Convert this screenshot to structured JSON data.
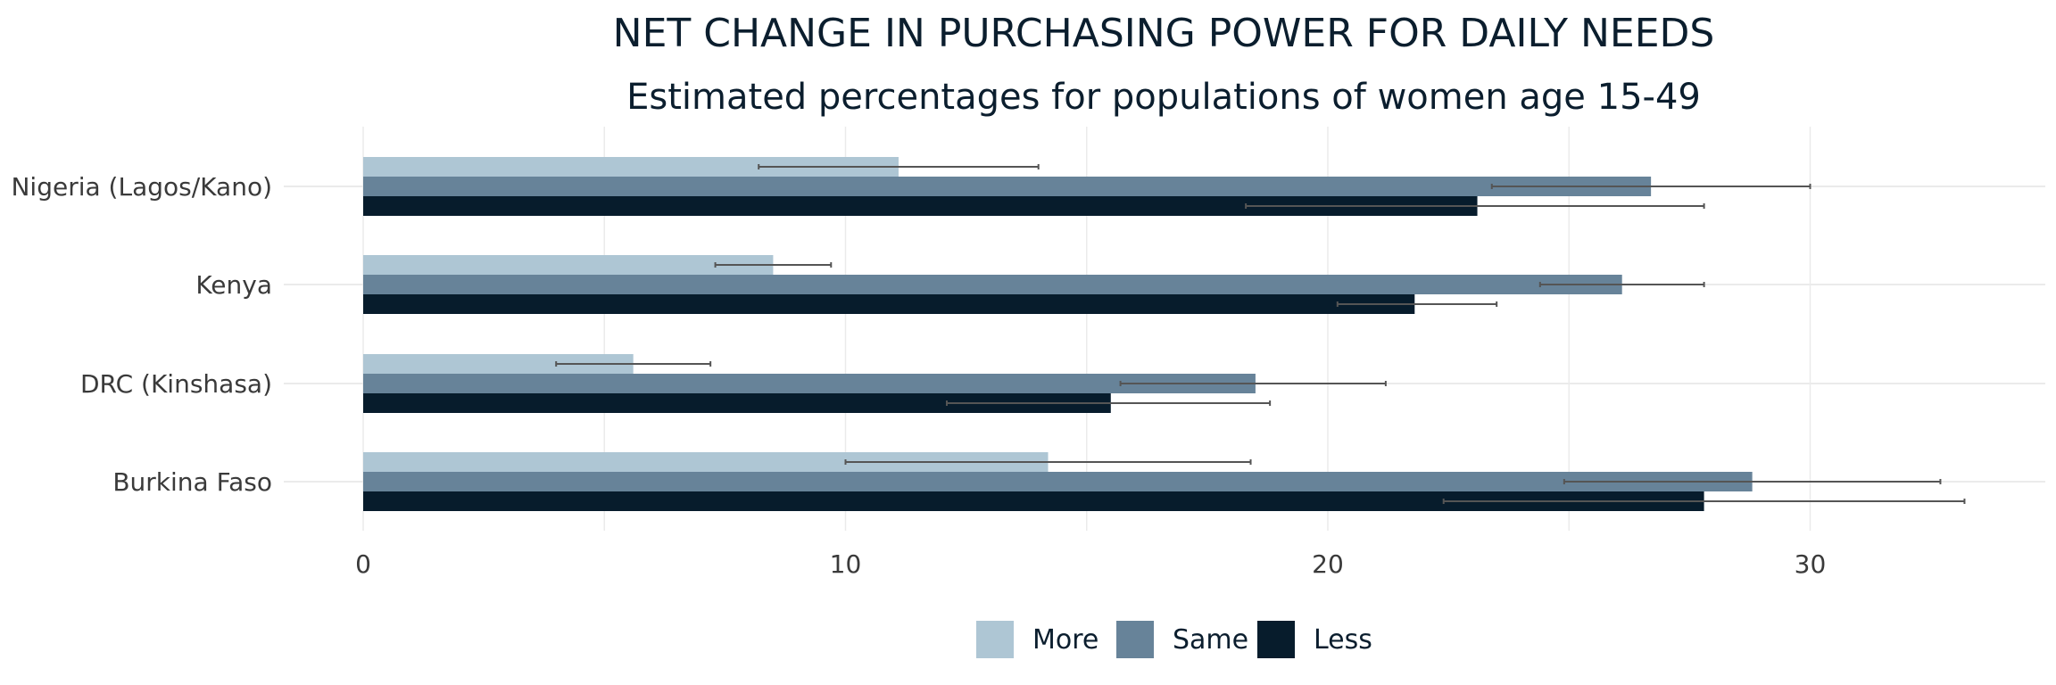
{
  "chart_data": {
    "type": "bar",
    "orientation": "horizontal",
    "title": "NET CHANGE IN PURCHASING POWER FOR DAILY NEEDS",
    "subtitle": "Estimated percentages for populations of women age 15-49",
    "xlabel": "",
    "ylabel": "",
    "xlim": [
      0,
      35
    ],
    "x_ticks": [
      0,
      10,
      20,
      30
    ],
    "grid": true,
    "legend_position": "bottom",
    "categories": [
      "Nigeria (Lagos/Kano)",
      "Kenya",
      "DRC (Kinshasa)",
      "Burkina Faso"
    ],
    "series": [
      {
        "name": "More",
        "color": "#aec6d4",
        "values": [
          11.1,
          8.5,
          5.6,
          14.2
        ],
        "error_low": [
          8.2,
          7.3,
          4.0,
          10.0
        ],
        "error_high": [
          14.0,
          9.7,
          7.2,
          18.4
        ]
      },
      {
        "name": "Same",
        "color": "#678399",
        "values": [
          26.7,
          26.1,
          18.5,
          28.8
        ],
        "error_low": [
          23.4,
          24.4,
          15.7,
          24.9
        ],
        "error_high": [
          30.0,
          27.8,
          21.2,
          32.7
        ]
      },
      {
        "name": "Less",
        "color": "#071c2c",
        "values": [
          23.1,
          21.8,
          15.5,
          27.8
        ],
        "error_low": [
          18.3,
          20.2,
          12.1,
          22.4
        ],
        "error_high": [
          27.8,
          23.5,
          18.8,
          33.2
        ]
      }
    ]
  }
}
